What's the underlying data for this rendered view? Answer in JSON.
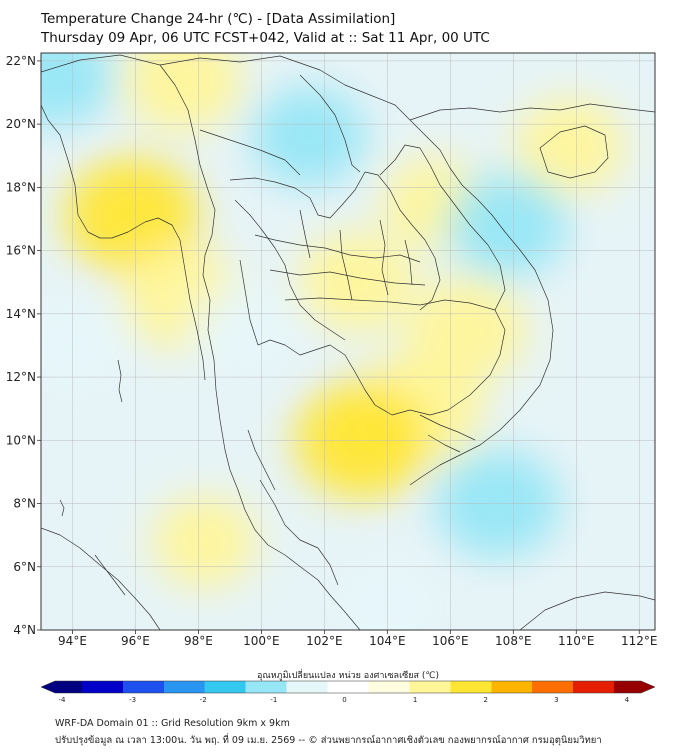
{
  "header": {
    "title_line1": "Temperature Change 24-hr (℃) - [Data Assimilation]",
    "title_line2": "Thursday 09 Apr, 06 UTC FCST+042, Valid at :: Sat 11 Apr, 00 UTC"
  },
  "map": {
    "lon_range": [
      93,
      112.5
    ],
    "lat_range": [
      4,
      22.25
    ],
    "lon_ticks": [
      {
        "value": 94,
        "label": "94°E"
      },
      {
        "value": 96,
        "label": "96°E"
      },
      {
        "value": 98,
        "label": "98°E"
      },
      {
        "value": 100,
        "label": "100°E"
      },
      {
        "value": 102,
        "label": "102°E"
      },
      {
        "value": 104,
        "label": "104°E"
      },
      {
        "value": 106,
        "label": "106°E"
      },
      {
        "value": 108,
        "label": "108°E"
      },
      {
        "value": 110,
        "label": "110°E"
      },
      {
        "value": 112,
        "label": "112°E"
      }
    ],
    "lat_ticks": [
      {
        "value": 22,
        "label": "22°N"
      },
      {
        "value": 20,
        "label": "20°N"
      },
      {
        "value": 18,
        "label": "18°N"
      },
      {
        "value": 16,
        "label": "16°N"
      },
      {
        "value": 14,
        "label": "14°N"
      },
      {
        "value": 12,
        "label": "12°N"
      },
      {
        "value": 10,
        "label": "10°N"
      },
      {
        "value": 8,
        "label": "8°N"
      },
      {
        "value": 6,
        "label": "6°N"
      },
      {
        "value": 4,
        "label": "4°N"
      }
    ],
    "grid": true,
    "background_color": "#e7f4f7",
    "warm_blobs": [
      {
        "lon": 97.5,
        "lat": 21.4,
        "value": 1.1
      },
      {
        "lon": 95.9,
        "lat": 17.1,
        "value": 1.4
      },
      {
        "lon": 97.5,
        "lat": 14.5,
        "value": 1.1
      },
      {
        "lon": 103.0,
        "lat": 15.0,
        "value": 1.0
      },
      {
        "lon": 105.0,
        "lat": 11.0,
        "value": 1.3
      },
      {
        "lon": 103.2,
        "lat": 10.0,
        "value": 1.4
      },
      {
        "lon": 106.5,
        "lat": 13.5,
        "value": 1.1
      },
      {
        "lon": 109.8,
        "lat": 19.3,
        "value": 0.9
      },
      {
        "lon": 98.2,
        "lat": 6.8,
        "value": 0.8
      },
      {
        "lon": 105.5,
        "lat": 17.5,
        "value": 0.8
      }
    ],
    "cool_blobs": [
      {
        "lon": 93.5,
        "lat": 21.5,
        "value": -1.0
      },
      {
        "lon": 101.5,
        "lat": 19.6,
        "value": -1.0
      },
      {
        "lon": 107.8,
        "lat": 16.8,
        "value": -1.1
      },
      {
        "lon": 107.5,
        "lat": 8.0,
        "value": -1.2
      },
      {
        "lon": 99.5,
        "lat": 13.5,
        "value": -0.8
      },
      {
        "lon": 94.0,
        "lat": 13.0,
        "value": -0.8
      },
      {
        "lon": 104.0,
        "lat": 4.8,
        "value": -0.8
      }
    ]
  },
  "colorbar": {
    "title": "อุณหภูมิเปลี่ยนแปลง หน่วย องศาเซลเซียส (℃)",
    "min": -4,
    "max": 4,
    "tick_values": [
      -4,
      -3,
      -2,
      -1,
      0,
      1,
      2,
      3,
      4
    ],
    "tick_labels": [
      "-4",
      "-3",
      "-2",
      "-1",
      "0",
      "1",
      "2",
      "3",
      "4"
    ],
    "colors": [
      "#000080",
      "#0000c8",
      "#1e50f0",
      "#2896f0",
      "#32c8f0",
      "#96e6f5",
      "#e6f7fa",
      "#ffffff",
      "#fffde0",
      "#fff599",
      "#ffe632",
      "#ffb400",
      "#ff6e00",
      "#e61e00",
      "#960000"
    ]
  },
  "footer": {
    "line1": "WRF-DA Domain 01 :: Grid Resolution 9km x 9km",
    "line2": "ปรับปรุงข้อมูล ณ เวลา 13:00น. วัน พฤ. ที่ 09 เม.ย. 2569 -- © ส่วนพยากรณ์อากาศเชิงตัวเลข กองพยากรณ์อากาศ กรมอุตุนิยมวิทยา"
  }
}
